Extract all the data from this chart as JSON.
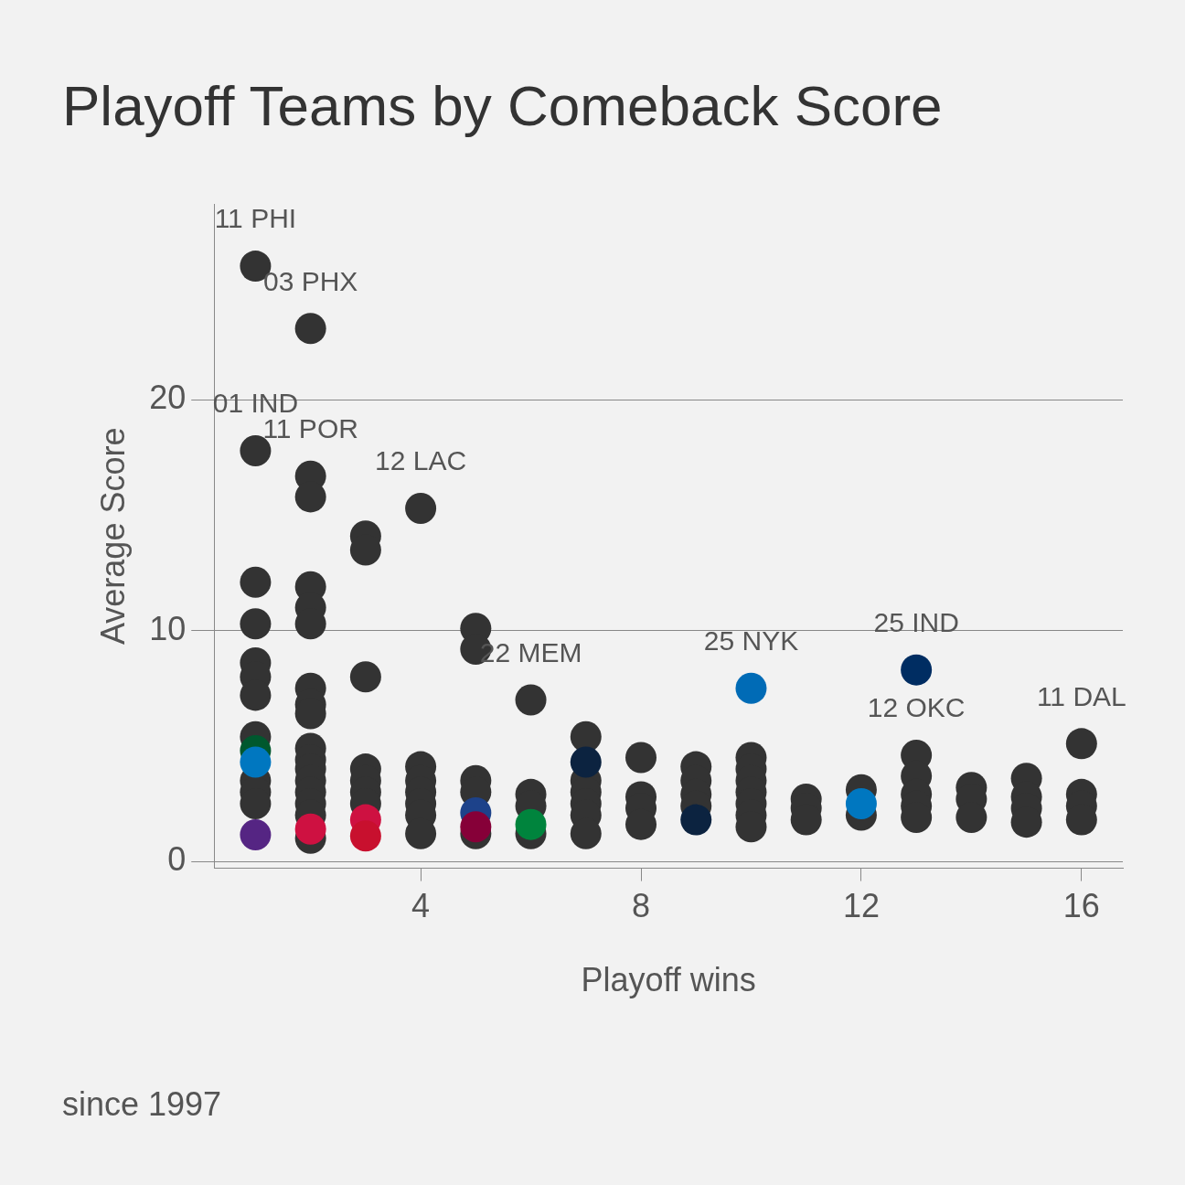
{
  "chart_data": {
    "type": "scatter",
    "title": "Playoff Teams by Comeback Score",
    "xlabel": "Playoff wins",
    "ylabel": "Average Score",
    "xlim": [
      0.25,
      16.75
    ],
    "ylim": [
      -0.3,
      28.5
    ],
    "xticks": [
      4,
      8,
      12,
      16
    ],
    "yticks": [
      0,
      10,
      20
    ],
    "grid": "y",
    "legend": false,
    "marker": "circle",
    "annotations": [
      {
        "text": "11 PHI",
        "x": 1,
        "y": 25.8
      },
      {
        "text": "03 PHX",
        "x": 2,
        "y": 23.1
      },
      {
        "text": "01 IND",
        "x": 1,
        "y": 17.8
      },
      {
        "text": "11 POR",
        "x": 2,
        "y": 16.7
      },
      {
        "text": "12 LAC",
        "x": 4,
        "y": 15.3
      },
      {
        "text": "22 MEM",
        "x": 6,
        "y": 7.0
      },
      {
        "text": "25 NYK",
        "x": 10,
        "y": 7.5
      },
      {
        "text": "25 IND",
        "x": 13,
        "y": 8.3
      },
      {
        "text": "12 OKC",
        "x": 13,
        "y": 4.6
      },
      {
        "text": "11 DAL",
        "x": 16,
        "y": 5.1
      },
      "since 1997"
    ],
    "series": [
      {
        "color": "#333333",
        "x": [
          1,
          1,
          1,
          1,
          1,
          1,
          1,
          1,
          1,
          1,
          1,
          2,
          2,
          2,
          2,
          2,
          2,
          2,
          2,
          2,
          2,
          2,
          2,
          2,
          2,
          2,
          2,
          2,
          3,
          3,
          3,
          3,
          3,
          3,
          3,
          4,
          4,
          4,
          4,
          4,
          4,
          4,
          5,
          5,
          5,
          5,
          5,
          6,
          6,
          6,
          6,
          7,
          7,
          7,
          7,
          7,
          7,
          8,
          8,
          8,
          8,
          9,
          9,
          9,
          9,
          10,
          10,
          10,
          10,
          10,
          10,
          10,
          11,
          11,
          11,
          12,
          12,
          13,
          13,
          13,
          13,
          13,
          14,
          14,
          14,
          15,
          15,
          15,
          15,
          16,
          16,
          16,
          16
        ],
        "values": [
          25.8,
          17.8,
          12.1,
          10.3,
          8.6,
          8.0,
          7.2,
          5.4,
          3.5,
          3.0,
          2.5,
          23.1,
          16.7,
          15.8,
          11.9,
          11.0,
          10.3,
          7.5,
          6.8,
          6.4,
          4.9,
          4.4,
          4.0,
          3.5,
          3.0,
          2.5,
          2.0,
          1.0,
          14.1,
          13.5,
          8.0,
          4.0,
          3.5,
          3.0,
          2.5,
          15.3,
          4.1,
          3.5,
          3.0,
          2.5,
          2.0,
          1.2,
          10.1,
          9.2,
          3.5,
          3.0,
          1.2,
          7.0,
          2.9,
          2.4,
          1.2,
          5.4,
          3.5,
          3.0,
          2.5,
          2.0,
          1.2,
          4.5,
          2.8,
          2.3,
          1.6,
          4.1,
          3.5,
          2.9,
          2.4,
          4.5,
          4.0,
          3.5,
          3.0,
          2.5,
          2.0,
          1.5,
          2.7,
          2.3,
          1.8,
          3.1,
          2.0,
          4.6,
          3.7,
          2.9,
          2.4,
          1.9,
          3.2,
          2.7,
          1.9,
          3.6,
          2.8,
          2.3,
          1.7,
          5.1,
          2.9,
          2.4,
          1.8
        ]
      },
      {
        "x": [
          1,
          1,
          1,
          2,
          3,
          3,
          5,
          5,
          6,
          7,
          9,
          10,
          12,
          13
        ],
        "values": [
          4.8,
          4.3,
          1.15,
          1.4,
          1.8,
          1.1,
          2.1,
          1.5,
          1.6,
          4.3,
          1.8,
          7.5,
          2.5,
          8.3
        ],
        "colors": [
          "#00582e",
          "#0077c0",
          "#552583",
          "#ce1141",
          "#ce1141",
          "#c8102e",
          "#1d428a",
          "#860038",
          "#00843d",
          "#0c2340",
          "#0c2340",
          "#006bb6",
          "#0077c0",
          "#002d62"
        ]
      }
    ]
  }
}
